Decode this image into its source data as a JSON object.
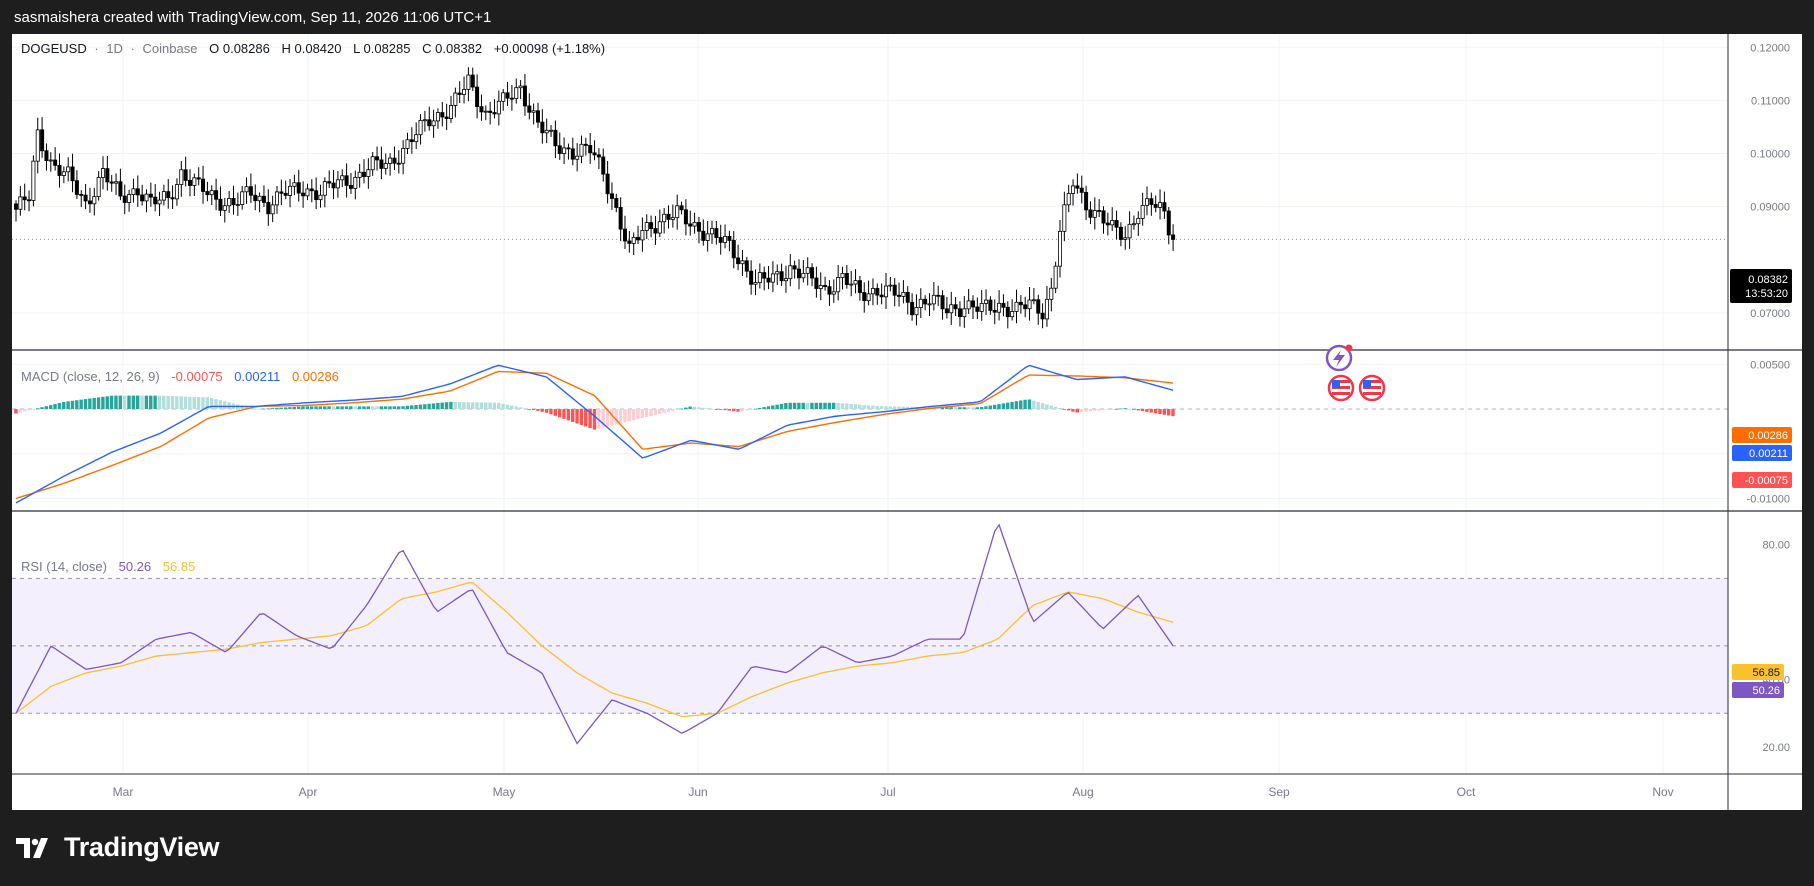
{
  "caption": "sasmaishera created with TradingView.com, Sep 11, 2026 11:06 UTC+1",
  "brand": {
    "name": "TradingView",
    "logo_icon": "tradingview-logo-icon"
  },
  "colors": {
    "up_candle": "#ffffff",
    "down_candle": "#000000",
    "candle_border": "#000000",
    "macd_line": "#2962ff",
    "signal_line": "#ff6d00",
    "hist_pos_strong": "#26a69a",
    "hist_pos_weak": "#b2dfdb",
    "hist_neg_strong": "#ff5252",
    "hist_neg_weak": "#ffcdd2",
    "rsi_line": "#7e57c2",
    "rsi_ma": "#fbc02d",
    "rsi_band": "#f3effc",
    "grid": "#f0f3fa",
    "text": "#131722",
    "axis_text": "#787b86"
  },
  "header": {
    "symbol": "DOGEUSD",
    "sep1": "·",
    "interval": "1D",
    "sep2": "·",
    "exchange": "Coinbase",
    "o_label": "O",
    "o_value": "0.08286",
    "h_label": "H",
    "h_value": "0.08420",
    "l_label": "L",
    "l_value": "0.08285",
    "c_label": "C",
    "c_value": "0.08382",
    "change": "+0.00098 (+1.18%)"
  },
  "price_tag": {
    "price": "0.08382",
    "countdown": "13:53:20"
  },
  "macd_legend": {
    "title": "MACD (close, 12, 26, 9)",
    "hist_value": "-0.00075",
    "macd_value": "0.00211",
    "signal_value": "0.00286"
  },
  "rsi_legend": {
    "title": "RSI (14, close)",
    "rsi_value": "50.26",
    "ma_value": "56.85"
  },
  "event_icons": [
    "lightning-event-icon",
    "us-flag-event-icon",
    "us-flag-event-icon"
  ],
  "chart_data": [
    {
      "type": "candlestick",
      "title": "DOGEUSD · 1D · Coinbase",
      "ylim": [
        0.063,
        0.1225
      ],
      "yticks": [
        "0.12000",
        "0.11000",
        "0.10000",
        "0.09000",
        "0.07000"
      ],
      "xticks": [
        "Mar",
        "Apr",
        "May",
        "Jun",
        "Jul",
        "Aug",
        "Sep",
        "Oct",
        "Nov"
      ],
      "last_price": 0.08382,
      "anchors": [
        [
          0,
          0.0895
        ],
        [
          3,
          0.0915
        ],
        [
          5,
          0.1035
        ],
        [
          8,
          0.0985
        ],
        [
          12,
          0.0955
        ],
        [
          16,
          0.0905
        ],
        [
          20,
          0.0965
        ],
        [
          24,
          0.0915
        ],
        [
          28,
          0.0935
        ],
        [
          31,
          0.0905
        ],
        [
          35,
          0.0915
        ],
        [
          38,
          0.0965
        ],
        [
          42,
          0.0935
        ],
        [
          46,
          0.0915
        ],
        [
          50,
          0.0905
        ],
        [
          54,
          0.0925
        ],
        [
          58,
          0.0905
        ],
        [
          62,
          0.0925
        ],
        [
          66,
          0.0935
        ],
        [
          70,
          0.0925
        ],
        [
          74,
          0.0945
        ],
        [
          78,
          0.0955
        ],
        [
          82,
          0.0975
        ],
        [
          86,
          0.0985
        ],
        [
          90,
          0.1015
        ],
        [
          95,
          0.1065
        ],
        [
          100,
          0.1085
        ],
        [
          104,
          0.1135
        ],
        [
          108,
          0.1075
        ],
        [
          112,
          0.1095
        ],
        [
          116,
          0.1125
        ],
        [
          120,
          0.1055
        ],
        [
          124,
          0.1015
        ],
        [
          128,
          0.1005
        ],
        [
          132,
          0.1005
        ],
        [
          135,
          0.0965
        ],
        [
          138,
          0.0895
        ],
        [
          141,
          0.0815
        ],
        [
          144,
          0.0855
        ],
        [
          148,
          0.0875
        ],
        [
          152,
          0.0885
        ],
        [
          156,
          0.0865
        ],
        [
          160,
          0.0845
        ],
        [
          164,
          0.0825
        ],
        [
          167,
          0.0795
        ],
        [
          170,
          0.0755
        ],
        [
          174,
          0.0765
        ],
        [
          178,
          0.0785
        ],
        [
          182,
          0.0765
        ],
        [
          186,
          0.0745
        ],
        [
          190,
          0.0765
        ],
        [
          194,
          0.0735
        ],
        [
          198,
          0.0745
        ],
        [
          202,
          0.0735
        ],
        [
          206,
          0.0715
        ],
        [
          210,
          0.0725
        ],
        [
          214,
          0.0705
        ],
        [
          218,
          0.0715
        ],
        [
          222,
          0.0705
        ],
        [
          226,
          0.0715
        ],
        [
          230,
          0.0705
        ],
        [
          233,
          0.0715
        ],
        [
          236,
          0.0705
        ],
        [
          238,
          0.0745
        ],
        [
          240,
          0.0855
        ],
        [
          243,
          0.0945
        ],
        [
          246,
          0.0905
        ],
        [
          249,
          0.0885
        ],
        [
          252,
          0.0855
        ],
        [
          255,
          0.0845
        ],
        [
          258,
          0.0895
        ],
        [
          261,
          0.0905
        ],
        [
          264,
          0.0885
        ],
        [
          266,
          0.0838
        ]
      ]
    },
    {
      "type": "line",
      "title": "MACD (close, 12, 26, 9)",
      "ylim": [
        -0.0114,
        0.0066
      ],
      "yticks": [
        "0.00500",
        "-0.00500",
        "-0.01000"
      ],
      "series": [
        {
          "name": "MACD",
          "values": [
            -0.0105,
            -0.0075,
            -0.0048,
            -0.0027,
            0.0003,
            0.0003,
            0.0007,
            0.001,
            0.0014,
            0.0028,
            0.0049,
            0.0036,
            -0.0008,
            -0.0055,
            -0.0035,
            -0.0045,
            -0.0018,
            -0.0008,
            -0.0003,
            0.0003,
            0.0008,
            0.0049,
            0.0033,
            0.0036,
            0.0021
          ]
        },
        {
          "name": "Signal",
          "values": [
            -0.01,
            -0.0083,
            -0.0063,
            -0.0042,
            -0.001,
            0.0003,
            0.0004,
            0.0007,
            0.0011,
            0.002,
            0.0042,
            0.004,
            0.0015,
            -0.0045,
            -0.0038,
            -0.0042,
            -0.0025,
            -0.0015,
            -0.0006,
            0.0001,
            0.0006,
            0.0038,
            0.0037,
            0.0035,
            0.0029
          ]
        }
      ],
      "histogram_last": -0.00075
    },
    {
      "type": "line",
      "title": "RSI (14, close)",
      "ylim": [
        12,
        90
      ],
      "yticks": [
        "80.00",
        "40.00",
        "20.00"
      ],
      "bands": [
        30,
        50,
        70
      ],
      "series": [
        {
          "name": "RSI",
          "values": [
            30,
            50,
            43,
            45,
            52,
            54,
            48,
            60,
            53,
            49,
            62,
            79,
            60,
            67,
            48,
            42,
            21,
            34,
            30,
            24,
            30,
            44,
            42,
            50,
            45,
            47,
            52,
            52,
            87,
            57,
            66,
            55,
            65,
            50
          ]
        },
        {
          "name": "RSI MA",
          "values": [
            30,
            38,
            42,
            44,
            47,
            48,
            49,
            51,
            52,
            53,
            56,
            64,
            66,
            69,
            60,
            50,
            42,
            36,
            33,
            29,
            30,
            35,
            39,
            42,
            44,
            45,
            47,
            48,
            52,
            62,
            66,
            64,
            60,
            57
          ]
        }
      ]
    }
  ]
}
